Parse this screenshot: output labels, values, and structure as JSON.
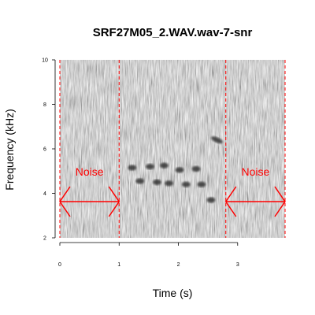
{
  "chart_data": {
    "type": "spectrogram",
    "title": "SRF27M05_2.WAV.wav-7-snr",
    "xlabel": "Time (s)",
    "ylabel": "Frequency (kHz)",
    "xlim": [
      0,
      3.8
    ],
    "ylim": [
      2,
      10
    ],
    "x_ticks": [
      "0",
      "1",
      "2",
      "3"
    ],
    "y_ticks": [
      "2",
      "4",
      "6",
      "8",
      "10"
    ],
    "boundaries_s": [
      0,
      1.0,
      2.8,
      3.8
    ],
    "noise_regions": [
      {
        "label": "Noise",
        "start": 0,
        "end": 1.0
      },
      {
        "label": "Noise",
        "start": 2.8,
        "end": 3.8
      }
    ],
    "call_syllables": [
      {
        "t": 1.22,
        "f": 5.15
      },
      {
        "t": 1.35,
        "f": 4.55
      },
      {
        "t": 1.52,
        "f": 5.2
      },
      {
        "t": 1.64,
        "f": 4.5
      },
      {
        "t": 1.76,
        "f": 5.25
      },
      {
        "t": 1.84,
        "f": 4.45
      },
      {
        "t": 2.02,
        "f": 5.05
      },
      {
        "t": 2.13,
        "f": 4.4
      },
      {
        "t": 2.3,
        "f": 5.1
      },
      {
        "t": 2.39,
        "f": 4.4
      },
      {
        "t": 2.55,
        "f": 3.7
      },
      {
        "t": 2.65,
        "f": 6.4
      }
    ],
    "colors": {
      "boundary": "#ff0000",
      "noise": "#ff0000",
      "call": "#333333"
    }
  }
}
